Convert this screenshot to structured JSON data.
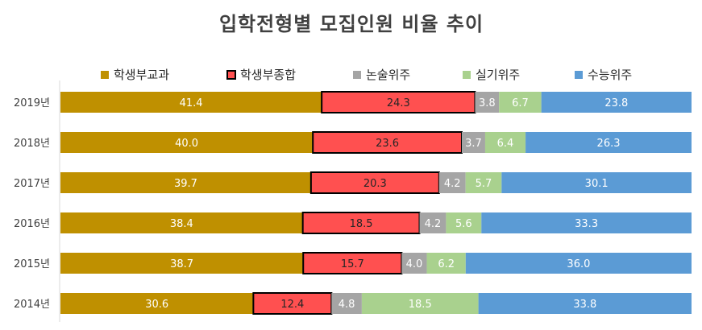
{
  "chart_data": {
    "type": "bar",
    "orientation": "horizontal",
    "stacked": "percent",
    "title": "입학전형별 모집인원 비율 추이",
    "categories": [
      "2019년",
      "2018년",
      "2017년",
      "2016년",
      "2015년",
      "2014년"
    ],
    "series": [
      {
        "name": "학생부교과",
        "color": "#bf9000",
        "values": [
          41.4,
          40.0,
          39.7,
          38.4,
          38.7,
          30.6
        ],
        "labels": [
          "41.4",
          "40.0",
          "39.7",
          "38.4",
          "38.7",
          "30.6"
        ],
        "outlined": false
      },
      {
        "name": "학생부종합",
        "color": "#ff5050",
        "values": [
          24.3,
          23.6,
          20.3,
          18.5,
          15.7,
          12.4
        ],
        "labels": [
          "24.3",
          "23.6",
          "20.3",
          "18.5",
          "15.7",
          "12.4"
        ],
        "outlined": true
      },
      {
        "name": "논술위주",
        "color": "#a5a5a5",
        "values": [
          3.8,
          3.7,
          4.2,
          4.2,
          4.0,
          4.8
        ],
        "labels": [
          "3.8",
          "3.7",
          "4.2",
          "4.2",
          "4.0",
          "4.8"
        ],
        "outlined": false
      },
      {
        "name": "실기위주",
        "color": "#a9d18e",
        "values": [
          6.7,
          6.4,
          5.7,
          5.6,
          6.2,
          18.5
        ],
        "labels": [
          "6.7",
          "6.4",
          "5.7",
          "5.6",
          "6.2",
          "18.5"
        ],
        "outlined": false
      },
      {
        "name": "수능위주",
        "color": "#5b9bd5",
        "values": [
          23.8,
          26.3,
          30.1,
          33.3,
          36.0,
          33.8
        ],
        "labels": [
          "23.8",
          "26.3",
          "30.1",
          "33.3",
          "36.0",
          "33.8"
        ],
        "outlined": false
      }
    ],
    "legend_position": "top",
    "grid": false
  }
}
